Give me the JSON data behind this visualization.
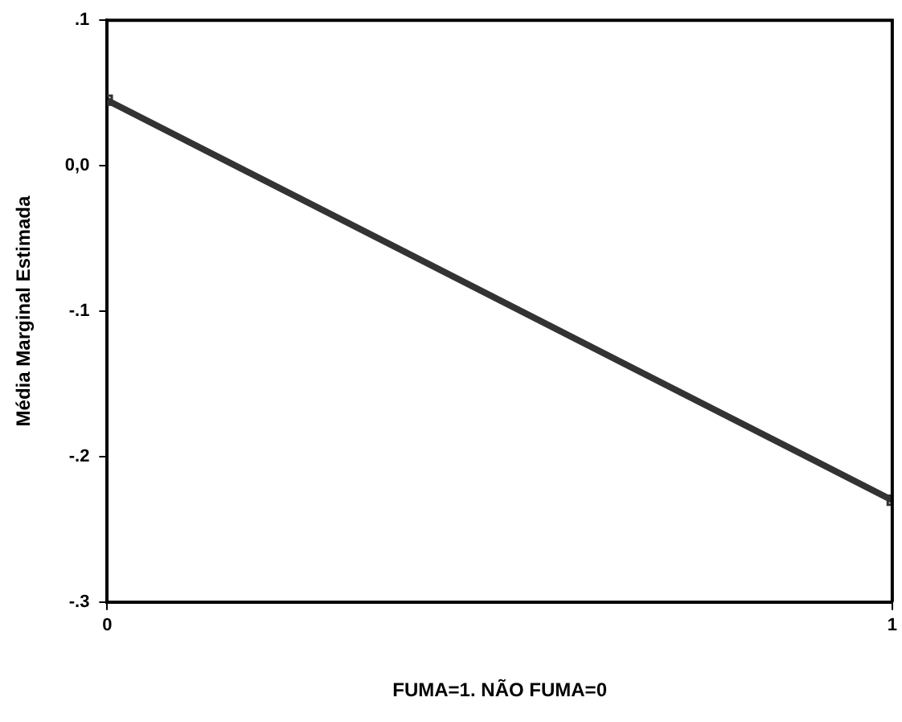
{
  "chart_data": {
    "type": "line",
    "xlabel": "FUMA=1. NÃO FUMA=0",
    "ylabel": "Média Marginal Estimada",
    "x": [
      0,
      1
    ],
    "series": [
      {
        "color": "#333333",
        "values": [
          0.045,
          -0.23
        ]
      }
    ],
    "xlim": [
      0,
      1
    ],
    "xticks": [
      0,
      1
    ],
    "ylim": [
      -0.3,
      0.1
    ],
    "yticks": [
      {
        "value": 0.1,
        "label": ".1"
      },
      {
        "value": 0,
        "label": "0,0"
      },
      {
        "value": -0.1,
        "label": "-.1"
      },
      {
        "value": -0.2,
        "label": "-.2"
      },
      {
        "value": -0.3,
        "label": "-.3"
      }
    ],
    "grid": false,
    "legend": false,
    "marker": "square",
    "line_style": "solid"
  }
}
